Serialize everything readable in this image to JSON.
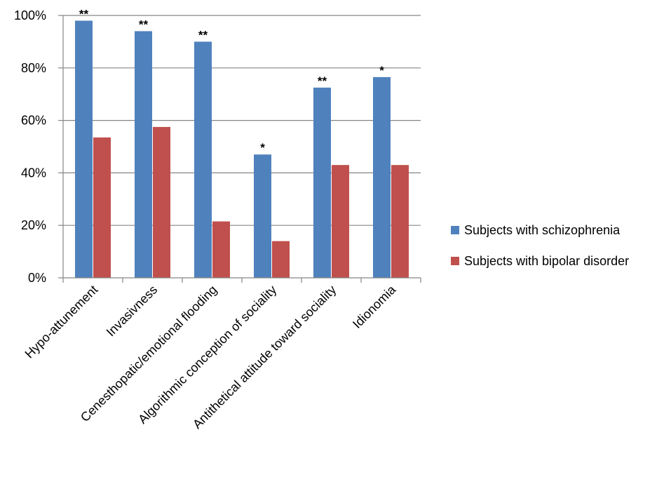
{
  "chart_data": {
    "type": "bar",
    "categories": [
      "Hypo-attunement",
      "Invasivness",
      "Cenesthopatic/emotional flooding",
      "Algorithmic conception of sociality",
      "Antithetical attitude toward sociality",
      "Idionomia"
    ],
    "series": [
      {
        "name": "Subjects with schizophrenia",
        "color": "#4F81BD",
        "values": [
          98,
          94,
          90,
          47,
          72.5,
          76.5
        ]
      },
      {
        "name": "Subjects with bipolar disorder",
        "color": "#C0504D",
        "values": [
          53.5,
          57.5,
          21.5,
          14,
          43,
          43
        ]
      }
    ],
    "significance": [
      "**",
      "**",
      "**",
      "*",
      "**",
      "*"
    ],
    "yticks": [
      "0%",
      "20%",
      "40%",
      "60%",
      "80%",
      "100%"
    ],
    "ylim": [
      0,
      100
    ],
    "grid": true,
    "legend_position": "right"
  }
}
